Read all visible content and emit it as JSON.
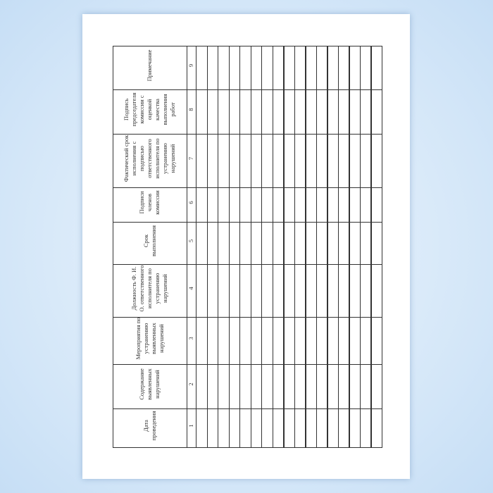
{
  "document": {
    "columns": [
      {
        "number": "1",
        "header": "Дата проведения"
      },
      {
        "number": "2",
        "header": "Содержание выявленных нарушений"
      },
      {
        "number": "3",
        "header": "Мероприятия по устранению выявленных нарушений"
      },
      {
        "number": "4",
        "header": "Должность Ф. И. О. ответственного исполнителя по устранению нарушений"
      },
      {
        "number": "5",
        "header": "Срок выполнения"
      },
      {
        "number": "6",
        "header": "Подписи членов комиссии"
      },
      {
        "number": "7",
        "header": "Фактический срок исполнения с подписью ответственного исполнителя по устранению нарушений"
      },
      {
        "number": "8",
        "header": "Подпись председателя комиссии с оценкой качества выполнения работ"
      },
      {
        "number": "9",
        "header": "Примечание"
      }
    ],
    "empty_rows": 17
  }
}
